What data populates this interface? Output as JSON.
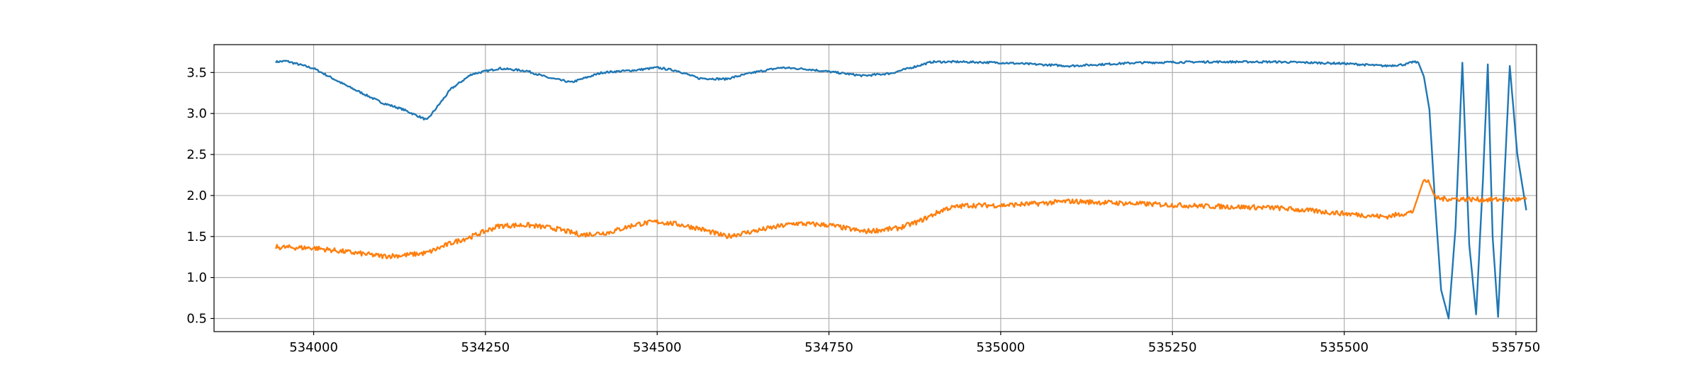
{
  "chart_data": {
    "type": "line",
    "title": "",
    "xlabel": "",
    "ylabel": "",
    "xlim": [
      533855,
      535780
    ],
    "ylim": [
      0.34,
      3.84
    ],
    "grid": true,
    "x_ticks": [
      534000,
      534250,
      534500,
      534750,
      535000,
      535250,
      535500,
      535750
    ],
    "y_ticks": [
      0.5,
      1.0,
      1.5,
      2.0,
      2.5,
      3.0,
      3.5
    ],
    "x_tick_labels": [
      "534000",
      "534250",
      "534500",
      "534750",
      "535000",
      "535250",
      "535500",
      "535750"
    ],
    "y_tick_labels": [
      "0.5",
      "1.0",
      "1.5",
      "2.0",
      "2.5",
      "3.0",
      "3.5"
    ],
    "series": [
      {
        "color": "#1f77b4",
        "noise": 0.012,
        "x": [
          533945,
          533960,
          534000,
          534050,
          534100,
          534130,
          534165,
          534200,
          534230,
          534270,
          534310,
          534340,
          534375,
          534420,
          534470,
          534500,
          534530,
          534560,
          534600,
          534640,
          534680,
          534720,
          534760,
          534800,
          534840,
          534870,
          534900,
          534940,
          535000,
          535050,
          535100,
          535200,
          535300,
          535400,
          535500,
          535560,
          535590,
          535600,
          535608,
          535616,
          535624,
          535632,
          535641,
          535652,
          535662,
          535672,
          535682,
          535692,
          535702,
          535709,
          535716,
          535724,
          535732,
          535741,
          535752,
          535765
        ],
        "y": [
          3.63,
          3.64,
          3.55,
          3.33,
          3.13,
          3.05,
          2.92,
          3.3,
          3.48,
          3.55,
          3.52,
          3.44,
          3.38,
          3.5,
          3.53,
          3.56,
          3.52,
          3.43,
          3.42,
          3.5,
          3.56,
          3.54,
          3.5,
          3.46,
          3.49,
          3.56,
          3.63,
          3.63,
          3.62,
          3.6,
          3.58,
          3.62,
          3.63,
          3.63,
          3.61,
          3.58,
          3.6,
          3.63,
          3.62,
          3.45,
          3.05,
          1.95,
          0.85,
          0.5,
          1.6,
          3.62,
          1.4,
          0.55,
          2.2,
          3.6,
          1.5,
          0.52,
          2.0,
          3.58,
          2.5,
          1.82
        ]
      },
      {
        "color": "#ff7f0e",
        "noise": 0.03,
        "x": [
          533945,
          534000,
          534050,
          534100,
          534130,
          534165,
          534200,
          534230,
          534270,
          534310,
          534350,
          534390,
          534430,
          534470,
          534500,
          534530,
          534560,
          534600,
          534650,
          534700,
          534750,
          534800,
          534850,
          534880,
          534920,
          534950,
          535000,
          535050,
          535100,
          535200,
          535300,
          535400,
          535500,
          535560,
          535600,
          535616,
          535624,
          535632,
          535641,
          535660,
          535700,
          535765
        ],
        "y": [
          1.37,
          1.36,
          1.31,
          1.26,
          1.27,
          1.3,
          1.42,
          1.5,
          1.63,
          1.64,
          1.6,
          1.52,
          1.55,
          1.65,
          1.68,
          1.65,
          1.6,
          1.5,
          1.58,
          1.66,
          1.64,
          1.56,
          1.6,
          1.68,
          1.84,
          1.88,
          1.88,
          1.9,
          1.93,
          1.9,
          1.87,
          1.85,
          1.78,
          1.74,
          1.8,
          2.2,
          2.15,
          1.98,
          1.96,
          1.96,
          1.95,
          1.95
        ]
      }
    ]
  }
}
